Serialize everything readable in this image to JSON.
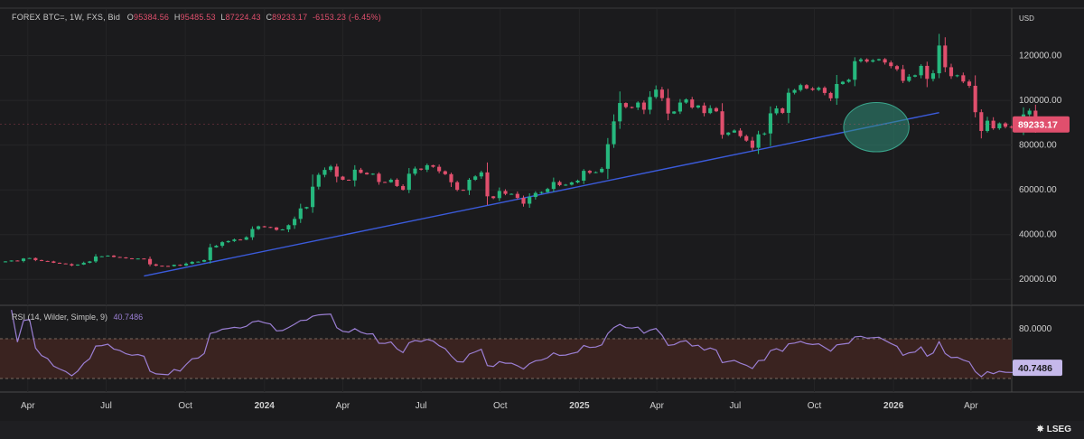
{
  "header": {
    "symbol": "FOREX BTC=, 1W, FXS, Bid",
    "open_label": "O",
    "open": "95384.56",
    "high_label": "H",
    "high": "95485.53",
    "low_label": "L",
    "low": "87224.43",
    "close_label": "C",
    "close": "89233.17",
    "change": "-6153.23 (-6.45%)"
  },
  "axis_unit": "USD",
  "brand": "LSEG",
  "colors": {
    "up": "#26b87e",
    "down": "#e04f6d",
    "trendline": "#3b5bdb",
    "rsi_line": "#9b7fd4",
    "rsi_band": "#3a2320",
    "highlight": "#2f8f7a"
  },
  "chart_data": [
    {
      "type": "candlestick",
      "name": "FOREX BTC=, 1W, FXS, Bid",
      "ylim": [
        10000,
        140000
      ],
      "yticks": [
        "120000.00",
        "100000.00",
        "80000.00",
        "60000.00",
        "40000.00",
        "20000.00"
      ],
      "ytick_values": [
        120000,
        100000,
        80000,
        60000,
        40000,
        20000
      ],
      "xticks": [
        "Apr",
        "Jul",
        "Oct",
        "2024",
        "Apr",
        "Jul",
        "Oct",
        "2025",
        "Apr",
        "Jul",
        "Oct",
        "2026",
        "Apr"
      ],
      "xtick_dates": [
        "2023-04-01",
        "2023-07-01",
        "2023-10-01",
        "2024-01-01",
        "2024-04-01",
        "2024-07-01",
        "2024-10-01",
        "2025-01-01",
        "2025-04-01",
        "2025-07-01",
        "2025-10-01",
        "2026-01-01",
        "2026-04-01"
      ],
      "xlim": [
        "2023-03-06",
        "2026-05-11"
      ],
      "last_price_label": "89233.17",
      "trendline": {
        "start": [
          "2023-08-14",
          21500
        ],
        "end": [
          "2026-02-23",
          94500
        ]
      },
      "highlight_ellipse": {
        "center": [
          "2025-12-12",
          88000
        ],
        "half_width_days": 38,
        "half_height": 11000
      },
      "closes": [
        28000,
        28400,
        28200,
        29300,
        29500,
        28600,
        28200,
        28000,
        27400,
        27100,
        26800,
        26200,
        26600,
        27400,
        28000,
        30200,
        30300,
        30600,
        30000,
        29800,
        29400,
        29200,
        29300,
        29100,
        26700,
        26100,
        26000,
        25900,
        26500,
        26200,
        27000,
        27800,
        27900,
        28600,
        34300,
        35000,
        36600,
        37100,
        37800,
        37700,
        38800,
        42500,
        43700,
        43400,
        43200,
        42100,
        42300,
        44200,
        47000,
        51700,
        52300,
        61400,
        66700,
        68900,
        70400,
        65900,
        64500,
        64200,
        69000,
        67600,
        66900,
        67200,
        63500,
        63400,
        64500,
        61700,
        60000,
        67200,
        69500,
        69000,
        71000,
        70300,
        68300,
        67000,
        63400,
        60000,
        59800,
        64500,
        66000,
        67800,
        57100,
        56300,
        59500,
        58200,
        58200,
        56400,
        53800,
        56800,
        58600,
        59000,
        60400,
        63500,
        62100,
        62300,
        63300,
        64100,
        68500,
        67600,
        67900,
        69400,
        80400,
        90600,
        98800,
        97000,
        96800,
        99000,
        95800,
        101500,
        104800,
        101000,
        94100,
        95000,
        99000,
        100400,
        96800,
        97700,
        94300,
        96500,
        95100,
        84600,
        85600,
        86500,
        84000,
        82000,
        78800,
        84800,
        85200,
        94200,
        96400,
        94400,
        103400,
        104600,
        106800,
        105300,
        104700,
        105600,
        103300,
        100900,
        107300,
        108300,
        109200,
        117500,
        118300,
        117300,
        117900,
        118400,
        116900,
        115300,
        113900,
        108700,
        110600,
        111200,
        115400,
        109600,
        112100,
        124500,
        114800,
        110800,
        111200,
        108400,
        106500,
        94700,
        86300,
        90900,
        87500,
        89700,
        88200,
        87900,
        88100,
        93700,
        95385,
        89233
      ],
      "weekly_candles_from": "2023-03-06",
      "weekly_candles_to": "2026-02-23"
    },
    {
      "type": "line",
      "name": "RSI (14, Wilder, Simple, 9)",
      "indicator_label": "RSI (14, Wilder, Simple, 9)",
      "last_value": "40.7486",
      "ylim": [
        20,
        100
      ],
      "yticks": [
        "80.0000"
      ],
      "ytick_values": [
        80
      ],
      "band": [
        30,
        70
      ]
    }
  ]
}
